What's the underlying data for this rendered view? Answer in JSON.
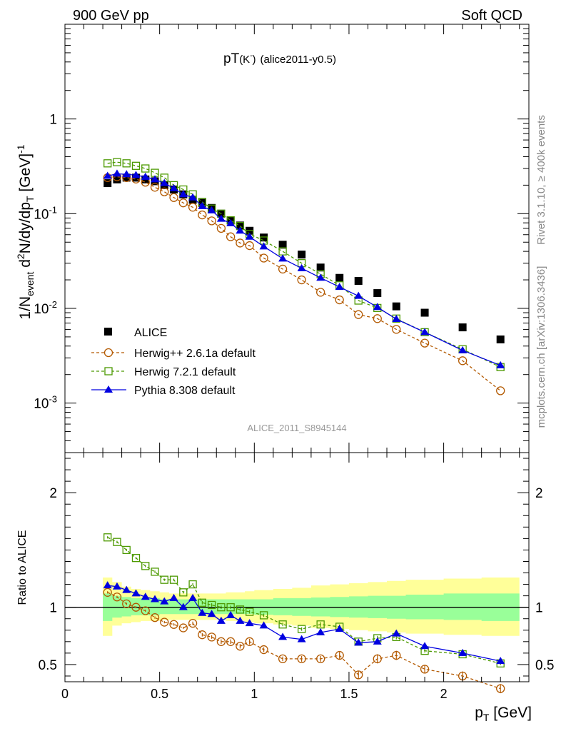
{
  "header": {
    "left": "900 GeV pp",
    "right": "Soft QCD"
  },
  "side_labels": {
    "rivet": "Rivet 3.1.10, ≥ 400k events",
    "mcplots": "mcplots.cern.ch [arXiv:1306.3436]"
  },
  "plot_title": {
    "main": "pT",
    "particle": "(K",
    "charge": "-",
    "close": ")",
    "tag": "(alice2011-y0.5)"
  },
  "watermark": "ALICE_2011_S8945144",
  "colors": {
    "alice": "#000000",
    "herwig_pp": "#b35900",
    "herwig7": "#4c9900",
    "pythia": "#0000e0",
    "band_inner": "#99ff99",
    "band_outer": "#ffff99"
  },
  "chart_data": [
    {
      "type": "scatter",
      "panel": "main",
      "yscale": "log",
      "ylabel": "1/N_event d²N/dy/dp_T [GeV]^-1",
      "ylim": [
        0.0003,
        10
      ],
      "xlim": [
        0,
        2.45
      ],
      "y_tick_labels": [
        "10^-3",
        "10^-2",
        "10^-1",
        "1"
      ],
      "legend_position": "lower-left",
      "x": [
        0.225,
        0.275,
        0.325,
        0.375,
        0.425,
        0.475,
        0.525,
        0.575,
        0.625,
        0.675,
        0.725,
        0.775,
        0.825,
        0.875,
        0.925,
        0.975,
        1.05,
        1.15,
        1.25,
        1.35,
        1.45,
        1.55,
        1.65,
        1.75,
        1.9,
        2.1,
        2.3
      ],
      "series": [
        {
          "name": "ALICE",
          "marker": "filled-square",
          "values": [
            0.21,
            0.23,
            0.24,
            0.24,
            0.23,
            0.22,
            0.2,
            0.18,
            0.16,
            0.14,
            0.13,
            0.115,
            0.1,
            0.085,
            0.075,
            0.066,
            0.056,
            0.047,
            0.037,
            0.027,
            0.021,
            0.0195,
            0.0145,
            0.0105,
            0.009,
            0.0063,
            0.0047
          ]
        },
        {
          "name": "Herwig++ 2.6.1a default",
          "marker": "open-circle",
          "values": [
            0.24,
            0.245,
            0.24,
            0.232,
            0.215,
            0.19,
            0.17,
            0.148,
            0.13,
            0.117,
            0.097,
            0.084,
            0.07,
            0.057,
            0.049,
            0.046,
            0.034,
            0.026,
            0.02,
            0.0148,
            0.0123,
            0.0086,
            0.0078,
            0.006,
            0.0043,
            0.0028,
            0.00135
          ]
        },
        {
          "name": "Herwig 7.2.1 default",
          "marker": "open-square",
          "values": [
            0.34,
            0.35,
            0.34,
            0.32,
            0.3,
            0.27,
            0.24,
            0.2,
            0.18,
            0.16,
            0.133,
            0.113,
            0.1,
            0.085,
            0.074,
            0.061,
            0.052,
            0.04,
            0.03,
            0.023,
            0.0175,
            0.0121,
            0.0101,
            0.0078,
            0.0056,
            0.0037,
            0.0024
          ]
        },
        {
          "name": "Pythia 8.308 default",
          "marker": "filled-triangle",
          "values": [
            0.25,
            0.264,
            0.26,
            0.255,
            0.244,
            0.23,
            0.21,
            0.185,
            0.16,
            0.148,
            0.12,
            0.108,
            0.088,
            0.079,
            0.066,
            0.057,
            0.045,
            0.0335,
            0.0265,
            0.021,
            0.0168,
            0.0135,
            0.0103,
            0.0077,
            0.0056,
            0.0036,
            0.0025
          ]
        }
      ]
    },
    {
      "type": "scatter",
      "panel": "ratio",
      "ylabel": "Ratio to ALICE",
      "xlabel": "p_T [GeV]",
      "ylim": [
        0.35,
        2.35
      ],
      "xlim": [
        0,
        2.45
      ],
      "x_tick_labels": [
        "0",
        "0.5",
        "1",
        "1.5",
        "2"
      ],
      "y_tick_labels": [
        "0.5",
        "1",
        "2"
      ],
      "reference_line": 1,
      "x": [
        0.225,
        0.275,
        0.325,
        0.375,
        0.425,
        0.475,
        0.525,
        0.575,
        0.625,
        0.675,
        0.725,
        0.775,
        0.825,
        0.875,
        0.925,
        0.975,
        1.05,
        1.15,
        1.25,
        1.35,
        1.45,
        1.55,
        1.65,
        1.75,
        1.9,
        2.1,
        2.3
      ],
      "bin_edges": [
        0.2,
        0.25,
        0.3,
        0.35,
        0.4,
        0.45,
        0.5,
        0.55,
        0.6,
        0.65,
        0.7,
        0.75,
        0.8,
        0.85,
        0.9,
        0.95,
        1.0,
        1.1,
        1.2,
        1.3,
        1.4,
        1.5,
        1.6,
        1.7,
        1.8,
        2.0,
        2.2,
        2.4
      ],
      "band_inner": [
        [
          0.88,
          1.12
        ],
        [
          0.91,
          1.1
        ],
        [
          0.92,
          1.09
        ],
        [
          0.93,
          1.08
        ],
        [
          0.93,
          1.08
        ],
        [
          0.93,
          1.08
        ],
        [
          0.94,
          1.07
        ],
        [
          0.94,
          1.07
        ],
        [
          0.94,
          1.07
        ],
        [
          0.94,
          1.07
        ],
        [
          0.94,
          1.07
        ],
        [
          0.94,
          1.07
        ],
        [
          0.94,
          1.07
        ],
        [
          0.94,
          1.07
        ],
        [
          0.94,
          1.07
        ],
        [
          0.94,
          1.07
        ],
        [
          0.935,
          1.07
        ],
        [
          0.93,
          1.08
        ],
        [
          0.925,
          1.08
        ],
        [
          0.92,
          1.085
        ],
        [
          0.915,
          1.09
        ],
        [
          0.91,
          1.095
        ],
        [
          0.905,
          1.1
        ],
        [
          0.9,
          1.1
        ],
        [
          0.895,
          1.11
        ],
        [
          0.89,
          1.12
        ],
        [
          0.88,
          1.12
        ]
      ],
      "band_outer": [
        [
          0.75,
          1.26
        ],
        [
          0.84,
          1.22
        ],
        [
          0.86,
          1.18
        ],
        [
          0.87,
          1.16
        ],
        [
          0.88,
          1.15
        ],
        [
          0.88,
          1.14
        ],
        [
          0.89,
          1.13
        ],
        [
          0.89,
          1.12
        ],
        [
          0.89,
          1.12
        ],
        [
          0.89,
          1.12
        ],
        [
          0.89,
          1.12
        ],
        [
          0.89,
          1.12
        ],
        [
          0.89,
          1.12
        ],
        [
          0.88,
          1.13
        ],
        [
          0.88,
          1.13
        ],
        [
          0.87,
          1.14
        ],
        [
          0.86,
          1.15
        ],
        [
          0.85,
          1.16
        ],
        [
          0.84,
          1.17
        ],
        [
          0.82,
          1.19
        ],
        [
          0.81,
          1.2
        ],
        [
          0.8,
          1.21
        ],
        [
          0.79,
          1.22
        ],
        [
          0.78,
          1.23
        ],
        [
          0.77,
          1.24
        ],
        [
          0.76,
          1.25
        ],
        [
          0.75,
          1.26
        ]
      ],
      "series": [
        {
          "name": "Herwig++ 2.6.1a default",
          "marker": "open-circle",
          "values": [
            1.13,
            1.09,
            1.03,
            1.0,
            0.97,
            0.91,
            0.87,
            0.85,
            0.82,
            0.86,
            0.76,
            0.74,
            0.7,
            0.7,
            0.66,
            0.7,
            0.63,
            0.55,
            0.55,
            0.55,
            0.58,
            0.41,
            0.55,
            0.58,
            0.46,
            0.4,
            0.29
          ],
          "errors": [
            0.01,
            0.01,
            0.01,
            0.01,
            0.01,
            0.01,
            0.01,
            0.01,
            0.01,
            0.015,
            0.015,
            0.015,
            0.02,
            0.02,
            0.02,
            0.025,
            0.02,
            0.02,
            0.025,
            0.025,
            0.03,
            0.035,
            0.04,
            0.04,
            0.035,
            0.04,
            0.04
          ]
        },
        {
          "name": "Herwig 7.2.1 default",
          "marker": "open-square",
          "values": [
            1.61,
            1.57,
            1.5,
            1.43,
            1.36,
            1.31,
            1.24,
            1.24,
            1.13,
            1.2,
            1.04,
            1.02,
            1.0,
            1.0,
            0.98,
            0.96,
            0.93,
            0.85,
            0.81,
            0.85,
            0.83,
            0.7,
            0.73,
            0.74,
            0.62,
            0.59,
            0.51
          ],
          "errors": [
            0.01,
            0.01,
            0.01,
            0.01,
            0.01,
            0.01,
            0.01,
            0.01,
            0.01,
            0.01,
            0.015,
            0.015,
            0.015,
            0.015,
            0.015,
            0.015,
            0.015,
            0.015,
            0.015,
            0.02,
            0.02,
            0.02,
            0.02,
            0.02,
            0.015,
            0.015,
            0.015
          ]
        },
        {
          "name": "Pythia 8.308 default",
          "marker": "filled-triangle",
          "values": [
            1.19,
            1.18,
            1.15,
            1.12,
            1.09,
            1.07,
            1.05,
            1.08,
            1.0,
            1.08,
            0.95,
            0.94,
            0.88,
            0.93,
            0.88,
            0.86,
            0.84,
            0.74,
            0.72,
            0.78,
            0.81,
            0.69,
            0.7,
            0.77,
            0.66,
            0.6,
            0.53
          ],
          "errors": [
            0.01,
            0.01,
            0.01,
            0.01,
            0.01,
            0.01,
            0.01,
            0.01,
            0.01,
            0.01,
            0.01,
            0.01,
            0.01,
            0.01,
            0.01,
            0.01,
            0.01,
            0.015,
            0.015,
            0.015,
            0.015,
            0.015,
            0.015,
            0.015,
            0.015,
            0.015,
            0.015
          ]
        }
      ]
    }
  ]
}
